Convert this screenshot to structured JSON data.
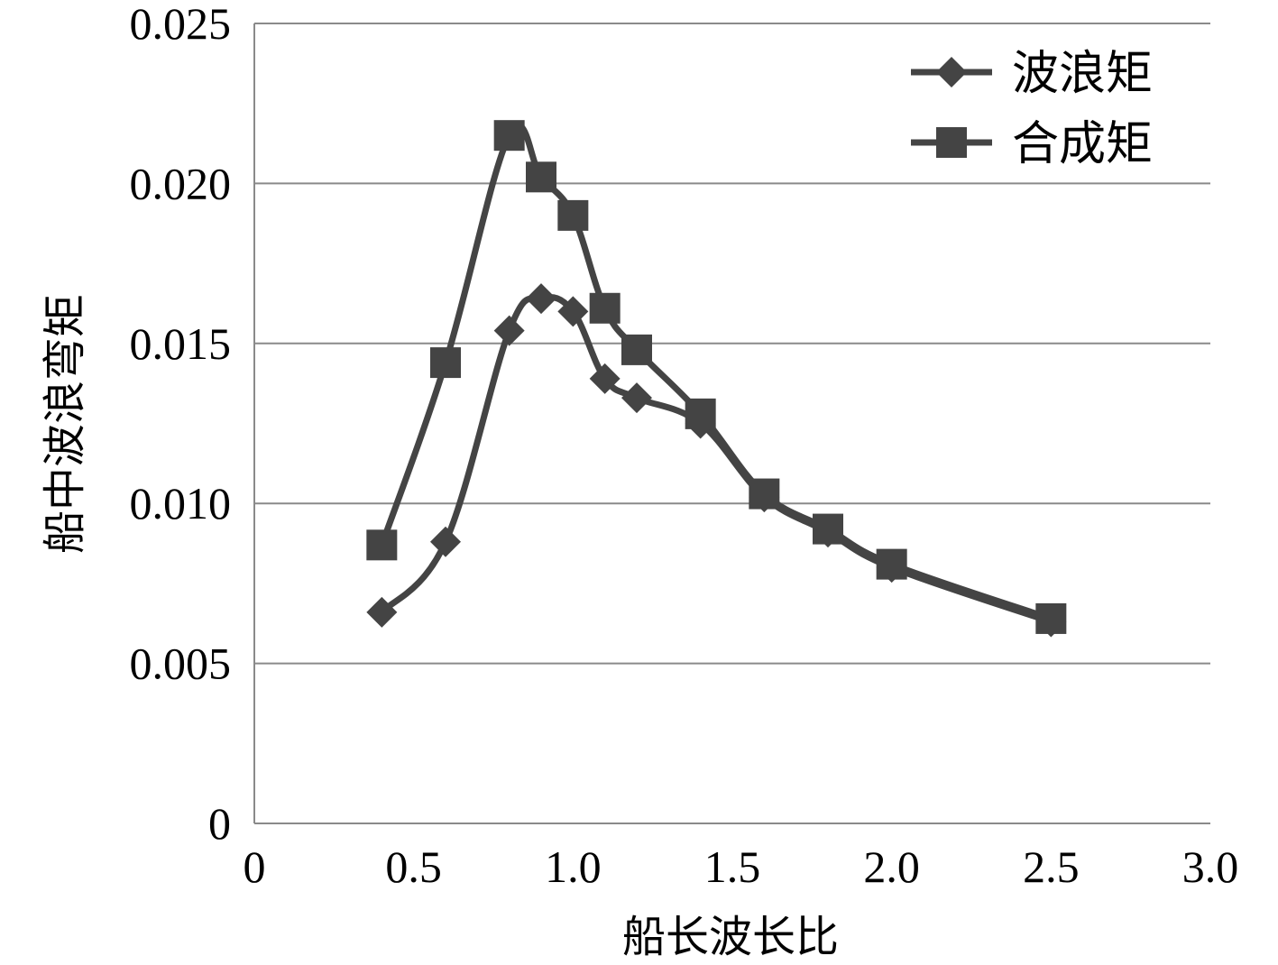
{
  "chart_data": {
    "type": "line",
    "xlabel": "船长波长比",
    "ylabel": "船中波浪弯矩",
    "xlim": [
      0,
      3.0
    ],
    "ylim": [
      0,
      0.025
    ],
    "xticks": [
      "0",
      "0.5",
      "1.0",
      "1.5",
      "2.0",
      "2.5",
      "3.0"
    ],
    "xtick_values": [
      0,
      0.5,
      1.0,
      1.5,
      2.0,
      2.5,
      3.0
    ],
    "yticks": [
      "0",
      "0.005",
      "0.010",
      "0.015",
      "0.020",
      "0.025"
    ],
    "ytick_values": [
      0,
      0.005,
      0.01,
      0.015,
      0.02,
      0.025
    ],
    "grid": "horizontal",
    "legend_position": "top-right",
    "series": [
      {
        "name": "波浪矩",
        "marker": "diamond",
        "color": "#444444",
        "x": [
          0.4,
          0.6,
          0.8,
          0.9,
          1.0,
          1.1,
          1.2,
          1.4,
          1.6,
          1.8,
          2.0,
          2.5
        ],
        "y": [
          0.0066,
          0.0088,
          0.0154,
          0.0164,
          0.016,
          0.0139,
          0.0133,
          0.0125,
          0.0102,
          0.0091,
          0.008,
          0.0063
        ]
      },
      {
        "name": "合成矩",
        "marker": "square",
        "color": "#444444",
        "x": [
          0.4,
          0.6,
          0.8,
          0.9,
          1.0,
          1.1,
          1.2,
          1.4,
          1.6,
          1.8,
          2.0,
          2.5
        ],
        "y": [
          0.0087,
          0.0144,
          0.0215,
          0.0202,
          0.019,
          0.0161,
          0.0148,
          0.0128,
          0.0103,
          0.0092,
          0.0081,
          0.0064
        ]
      }
    ]
  }
}
